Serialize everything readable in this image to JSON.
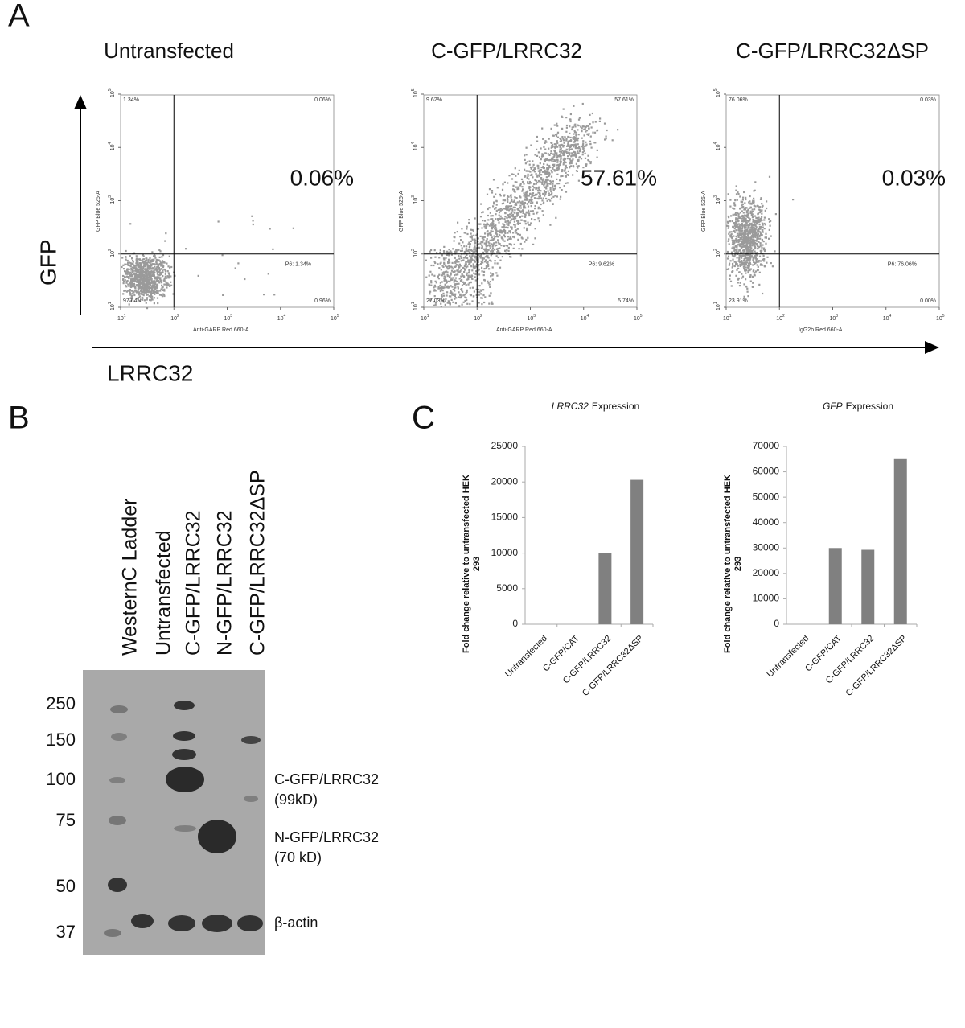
{
  "panel_labels": {
    "a": "A",
    "b": "B",
    "c": "C"
  },
  "flow": {
    "y_axis": "GFP",
    "x_axis": "LRRC32",
    "tick_base": "10",
    "log_ticks": [
      1,
      2,
      3,
      4,
      5
    ],
    "plots": [
      {
        "title": "Untransfected",
        "percent": "0.06%",
        "ul": "1.34%",
        "ur": "0.06%",
        "ll": "97.64%",
        "lr": "0.96%",
        "gate": "P6: 1.34%",
        "xlabel": "Anti-GARP Red 660-A",
        "ylabel": "GFP Blue 525-A"
      },
      {
        "title": "C-GFP/LRRC32",
        "percent": "57.61%",
        "ul": "9.62%",
        "ur": "57.61%",
        "ll": "27.03%",
        "lr": "5.74%",
        "gate": "P6: 9.62%",
        "xlabel": "Anti-GARP Red 660-A",
        "ylabel": "GFP Blue 525-A"
      },
      {
        "title": "C-GFP/LRRC32ΔSP",
        "percent": "0.03%",
        "ul": "76.06%",
        "ur": "0.03%",
        "ll": "23.91%",
        "lr": "0.00%",
        "gate": "P6: 76.06%",
        "xlabel": "IgG2b Red 660-A",
        "ylabel": "GFP Blue 525-A"
      }
    ]
  },
  "blot": {
    "lanes": [
      "WesternC Ladder",
      "Untransfected",
      "C-GFP/LRRC32",
      "N-GFP/LRRC32",
      "C-GFP/LRRC32ΔSP"
    ],
    "markers": [
      250,
      150,
      100,
      75,
      50,
      37
    ],
    "bands": [
      {
        "name": "C-GFP/LRRC32",
        "size": "(99kD)"
      },
      {
        "name": "N-GFP/LRRC32",
        "size": "(70 kD)"
      },
      {
        "name": "β-actin"
      }
    ]
  },
  "chart_data": [
    {
      "type": "bar",
      "title_italic": "LRRC32",
      "title": "Expression",
      "ylabel": [
        "Fold change relative to untransfected HEK",
        "293"
      ],
      "categories": [
        "Untransfected",
        "C-GFP/CAT",
        "C-GFP/LRRC32",
        "C-GFP/LRRC32ΔSP"
      ],
      "values": [
        0,
        0,
        10000,
        20300
      ],
      "color": "#808080",
      "ylim": [
        0,
        25000
      ],
      "yticks": [
        0,
        5000,
        10000,
        15000,
        20000,
        25000
      ]
    },
    {
      "type": "bar",
      "title_italic": "GFP",
      "title": "Expression",
      "ylabel": [
        "Fold change relative to untransfected HEK",
        "293"
      ],
      "categories": [
        "Untransfected",
        "C-GFP/CAT",
        "C-GFP/LRRC32",
        "C-GFP/LRRC32ΔSP"
      ],
      "values": [
        0,
        30000,
        29300,
        65000
      ],
      "color": "#808080",
      "ylim": [
        0,
        70000
      ],
      "yticks": [
        0,
        10000,
        20000,
        30000,
        40000,
        50000,
        60000,
        70000
      ]
    }
  ]
}
